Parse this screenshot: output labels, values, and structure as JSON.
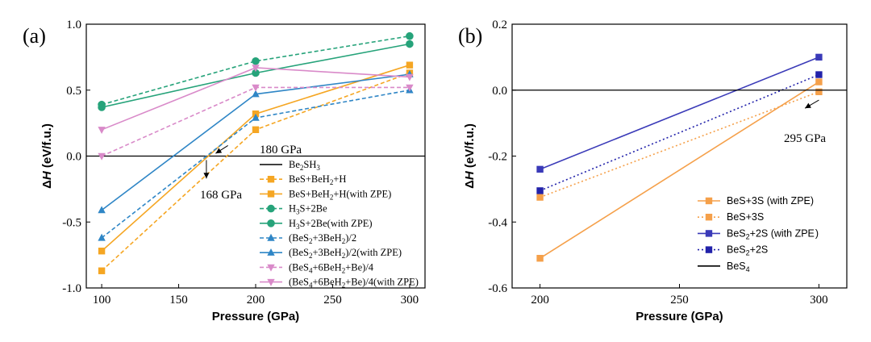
{
  "chart_data": [
    {
      "panel": "(a)",
      "type": "line",
      "xlabel": "Pressure (GPa)",
      "ylabel": "ΔH (eV/f.u.)",
      "xlim": [
        90,
        310
      ],
      "ylim": [
        -1.0,
        1.0
      ],
      "xticks": [
        100,
        150,
        200,
        250,
        300
      ],
      "yticks": [
        -1.0,
        -0.5,
        0.0,
        0.5,
        1.0
      ],
      "x": [
        100,
        200,
        300
      ],
      "series": [
        {
          "name": "Be2SH3",
          "label": "Be",
          "sub": "2",
          "label2": "SH",
          "sub2": "3",
          "color": "#000000",
          "dash": "solid",
          "marker": "none",
          "values": [
            0,
            0,
            0
          ],
          "reference": true
        },
        {
          "name": "BeS+BeH2+H",
          "color": "#f5a623",
          "dash": "dash",
          "marker": "square",
          "values": [
            -0.87,
            0.2,
            0.63
          ]
        },
        {
          "name": "BeS+BeH2+H(with ZPE)",
          "color": "#f5a623",
          "dash": "solid",
          "marker": "square",
          "values": [
            -0.72,
            0.32,
            0.69
          ]
        },
        {
          "name": "H3S+2Be",
          "color": "#26a37a",
          "dash": "dash",
          "marker": "circle",
          "values": [
            0.39,
            0.72,
            0.91
          ]
        },
        {
          "name": "H3S+2Be(with ZPE)",
          "color": "#26a37a",
          "dash": "solid",
          "marker": "circle",
          "values": [
            0.37,
            0.63,
            0.85
          ]
        },
        {
          "name": "(BeS2+3BeH2)/2",
          "color": "#2f86c6",
          "dash": "dash",
          "marker": "triangle-up",
          "values": [
            -0.62,
            0.29,
            0.5
          ]
        },
        {
          "name": "(BeS2+3BeH2)/2(with ZPE)",
          "color": "#2f86c6",
          "dash": "solid",
          "marker": "triangle-up",
          "values": [
            -0.41,
            0.47,
            0.62
          ]
        },
        {
          "name": "(BeS4+6BeH2+Be)/4",
          "color": "#d98ac9",
          "dash": "dash",
          "marker": "triangle-down",
          "values": [
            0.0,
            0.52,
            0.52
          ]
        },
        {
          "name": "(BeS4+6BeH2+Be)/4(with ZPE)",
          "color": "#d98ac9",
          "dash": "solid",
          "marker": "triangle-down",
          "values": [
            0.2,
            0.67,
            0.6
          ]
        }
      ],
      "legend_labels": [
        [
          {
            "t": "Be"
          },
          {
            "t": "2",
            "s": 1
          },
          {
            "t": "SH"
          },
          {
            "t": "3",
            "s": 1
          }
        ],
        [
          {
            "t": "BeS+BeH"
          },
          {
            "t": "2",
            "s": 1
          },
          {
            "t": "+H"
          }
        ],
        [
          {
            "t": "BeS+BeH"
          },
          {
            "t": "2",
            "s": 1
          },
          {
            "t": "+H(with ZPE)"
          }
        ],
        [
          {
            "t": "H"
          },
          {
            "t": "3",
            "s": 1
          },
          {
            "t": "S+2Be"
          }
        ],
        [
          {
            "t": "H"
          },
          {
            "t": "3",
            "s": 1
          },
          {
            "t": "S+2Be(with ZPE)"
          }
        ],
        [
          {
            "t": "(BeS"
          },
          {
            "t": "2",
            "s": 1
          },
          {
            "t": "+3BeH"
          },
          {
            "t": "2",
            "s": 1
          },
          {
            "t": ")/2"
          }
        ],
        [
          {
            "t": "(BeS"
          },
          {
            "t": "2",
            "s": 1
          },
          {
            "t": "+3BeH"
          },
          {
            "t": "2",
            "s": 1
          },
          {
            "t": ")/2(with ZPE)"
          }
        ],
        [
          {
            "t": "(BeS"
          },
          {
            "t": "4",
            "s": 1
          },
          {
            "t": "+6BeH"
          },
          {
            "t": "2",
            "s": 1
          },
          {
            "t": "+Be)/4"
          }
        ],
        [
          {
            "t": "(BeS"
          },
          {
            "t": "4",
            "s": 1
          },
          {
            "t": "+6BeH"
          },
          {
            "t": "2",
            "s": 1
          },
          {
            "t": "+Be)/4(with ZPE)"
          }
        ]
      ],
      "annotations": [
        {
          "text": "180 GPa",
          "x_from": 182,
          "y_from": 0.08,
          "x_to": 174,
          "y_to": 0.02
        },
        {
          "text": "168 GPa",
          "x_from": 168,
          "y_from": -0.03,
          "x_to": 168,
          "y_to": -0.17
        }
      ]
    },
    {
      "panel": "(b)",
      "type": "line",
      "xlabel": "Pressure (GPa)",
      "ylabel": "ΔH (eV/f.u.)",
      "xlim": [
        190,
        310
      ],
      "ylim": [
        -0.6,
        0.2
      ],
      "xticks": [
        200,
        250,
        300
      ],
      "yticks": [
        -0.6,
        -0.4,
        -0.2,
        0.0,
        0.2
      ],
      "x": [
        200,
        300
      ],
      "series": [
        {
          "name": "BeS+3S (with ZPE)",
          "color": "#f5a04a",
          "dash": "solid",
          "marker": "square",
          "values": [
            -0.51,
            0.025
          ]
        },
        {
          "name": "BeS+3S",
          "color": "#f5a04a",
          "dash": "dot",
          "marker": "square",
          "values": [
            -0.325,
            -0.005
          ]
        },
        {
          "name": "BeS2+2S (with ZPE)",
          "color": "#3a3ab8",
          "dash": "solid",
          "marker": "square",
          "values": [
            -0.24,
            0.1
          ]
        },
        {
          "name": "BeS2+2S",
          "color": "#2222aa",
          "dash": "dot",
          "marker": "square",
          "values": [
            -0.305,
            0.047
          ]
        },
        {
          "name": "BeS4",
          "color": "#000000",
          "dash": "solid",
          "marker": "none",
          "values": [
            0,
            0
          ],
          "reference": true
        }
      ],
      "legend_labels": [
        [
          {
            "t": "BeS+3S (with ZPE)"
          }
        ],
        [
          {
            "t": "BeS+3S"
          }
        ],
        [
          {
            "t": "BeS"
          },
          {
            "t": "2",
            "s": 1
          },
          {
            "t": "+2S (with ZPE )"
          }
        ],
        [
          {
            "t": "BeS"
          },
          {
            "t": "2",
            "s": 1
          },
          {
            "t": "+2S"
          }
        ],
        [
          {
            "t": "BeS"
          },
          {
            "t": "4",
            "s": 1
          }
        ]
      ],
      "annotations": [
        {
          "text": "295 GPa",
          "x_from": 300,
          "y_from": -0.03,
          "x_to": 295,
          "y_to": -0.055
        }
      ]
    }
  ]
}
